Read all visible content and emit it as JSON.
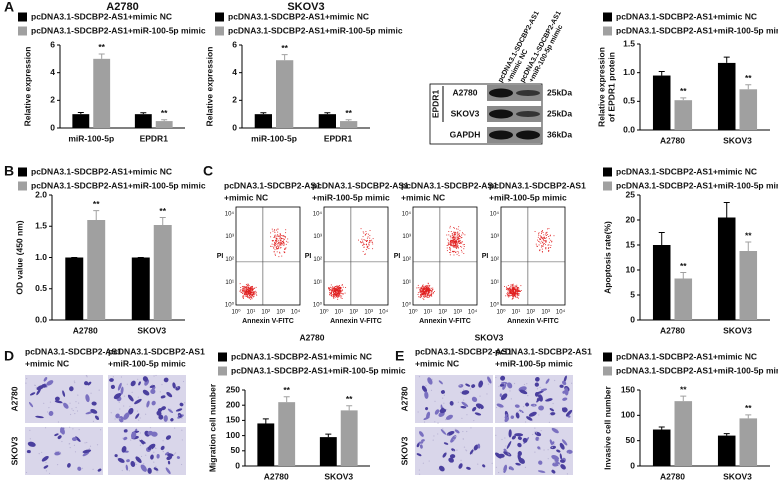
{
  "panel_labels": [
    "A",
    "B",
    "C",
    "D",
    "E"
  ],
  "chart_data": [
    {
      "type": "bar",
      "title": "A2780",
      "y_label": "Relative expression",
      "categories": [
        "miR-100-5p",
        "EPDR1"
      ],
      "series": [
        {
          "name": "pcDNA3.1-SDCBP2-AS1+mimic NC",
          "color": "#000000",
          "values": [
            1,
            1
          ],
          "errors": [
            0.12,
            0.1
          ]
        },
        {
          "name": "pcDNA3.1-SDCBP2-AS1+miR-100-5p mimic",
          "color": "#a0a0a0",
          "values": [
            5.0,
            0.5
          ],
          "errors": [
            0.35,
            0.1
          ]
        }
      ],
      "significance": [
        "**",
        "**"
      ],
      "ylim": [
        0,
        6
      ],
      "yticks": [
        0,
        2,
        4,
        6
      ]
    },
    {
      "type": "bar",
      "title": "SKOV3",
      "y_label": "Relative expression",
      "categories": [
        "miR-100-5p",
        "EPDR1"
      ],
      "series": [
        {
          "name": "pcDNA3.1-SDCBP2-AS1+mimic NC",
          "color": "#000000",
          "values": [
            1,
            1
          ],
          "errors": [
            0.1,
            0.1
          ]
        },
        {
          "name": "pcDNA3.1-SDCBP2-AS1+miR-100-5p mimic",
          "color": "#a0a0a0",
          "values": [
            4.9,
            0.5
          ],
          "errors": [
            0.4,
            0.1
          ]
        }
      ],
      "significance": [
        "**",
        "**"
      ],
      "ylim": [
        0,
        6
      ],
      "yticks": [
        0,
        2,
        4,
        6
      ]
    },
    {
      "type": "bar",
      "y_label": [
        "Relative expression",
        "of EPDR1 protein"
      ],
      "categories": [
        "A2780",
        "SKOV3"
      ],
      "series": [
        {
          "name": "pcDNA3.1-SDCBP2-AS1+mimic NC",
          "color": "#000000",
          "values": [
            0.95,
            1.17
          ],
          "errors": [
            0.07,
            0.1
          ]
        },
        {
          "name": "pcDNA3.1-SDCBP2-AS1+miR-100-5p mimic",
          "color": "#a0a0a0",
          "values": [
            0.52,
            0.71
          ],
          "errors": [
            0.04,
            0.08
          ]
        }
      ],
      "significance": [
        "**",
        "**"
      ],
      "ylim": [
        0,
        1.5
      ],
      "yticks": [
        {
          "value": 0,
          "label": "0.0"
        },
        {
          "value": 0.5,
          "label": "0.5"
        },
        {
          "value": 1,
          "label": "1.0"
        },
        {
          "value": 1.5,
          "label": "1.5"
        }
      ]
    },
    {
      "type": "bar",
      "y_label": "OD value (450 nm)",
      "categories": [
        "A2780",
        "SKOV3"
      ],
      "series": [
        {
          "name": "pcDNA3.1-SDCBP2-AS1+mimic NC",
          "color": "#000000",
          "values": [
            1.0,
            1.0
          ],
          "errors": [
            0,
            0
          ]
        },
        {
          "name": "pcDNA3.1-SDCBP2-AS1+miR-100-5p mimic",
          "color": "#a0a0a0",
          "values": [
            1.6,
            1.52
          ],
          "errors": [
            0.15,
            0.12
          ]
        }
      ],
      "significance": [
        "**",
        "**"
      ],
      "ylim": [
        0,
        2
      ],
      "yticks": [
        {
          "value": 0,
          "label": "0.0"
        },
        {
          "value": 0.5,
          "label": "0.5"
        },
        {
          "value": 1,
          "label": "1.0"
        },
        {
          "value": 1.5,
          "label": "1.5"
        },
        {
          "value": 2,
          "label": "2.0"
        }
      ]
    },
    {
      "type": "bar",
      "y_label": "Apoptosis rate(%)",
      "categories": [
        "A2780",
        "SKOV3"
      ],
      "series": [
        {
          "name": "pcDNA3.1-SDCBP2-AS1+mimic NC",
          "color": "#000000",
          "values": [
            15,
            20.5
          ],
          "errors": [
            2.5,
            3
          ]
        },
        {
          "name": "pcDNA3.1-SDCBP2-AS1+miR-100-5p mimic",
          "color": "#a0a0a0",
          "values": [
            8.3,
            13.8
          ],
          "errors": [
            1.2,
            1.8
          ]
        }
      ],
      "significance": [
        "**",
        "**"
      ],
      "ylim": [
        0,
        25
      ],
      "yticks": [
        0,
        5,
        10,
        15,
        20,
        25
      ]
    },
    {
      "type": "bar",
      "y_label": "Migration cell number",
      "categories": [
        "A2780",
        "SKOV3"
      ],
      "series": [
        {
          "name": "pcDNA3.1-SDCBP2-AS1+mimic NC",
          "color": "#000000",
          "values": [
            140,
            95
          ],
          "errors": [
            15,
            10
          ]
        },
        {
          "name": "pcDNA3.1-SDCBP2-AS1+miR-100-5p mimic",
          "color": "#a0a0a0",
          "values": [
            210,
            183
          ],
          "errors": [
            18,
            15
          ]
        }
      ],
      "significance": [
        "**",
        "**"
      ],
      "ylim": [
        0,
        250
      ],
      "yticks": [
        0,
        50,
        100,
        150,
        200,
        250
      ]
    },
    {
      "type": "bar",
      "y_label": "Invasive cell number",
      "categories": [
        "A2780",
        "SKOV3"
      ],
      "series": [
        {
          "name": "pcDNA3.1-SDCBP2-AS1+mimic NC",
          "color": "#000000",
          "values": [
            72,
            60
          ],
          "errors": [
            5,
            4
          ]
        },
        {
          "name": "pcDNA3.1-SDCBP2-AS1+miR-100-5p mimic",
          "color": "#a0a0a0",
          "values": [
            128,
            94
          ],
          "errors": [
            10,
            7
          ]
        }
      ],
      "significance": [
        "**",
        "**"
      ],
      "ylim": [
        0,
        150
      ],
      "yticks": [
        0,
        50,
        100,
        150
      ]
    }
  ],
  "blot": {
    "columns": [
      [
        "pcDNA3.1-SDCBP2-AS1",
        "+mimic NC"
      ],
      [
        "pcDNA3.1-SDCBP2-AS1",
        "+miR-100-5p mimic"
      ]
    ],
    "group": "EPDR1",
    "rows": [
      "A2780",
      "SKOV3",
      "GAPDH"
    ],
    "sizes": [
      "25kDa",
      "25kDa",
      "36kDa"
    ]
  },
  "flow": {
    "titles": [
      [
        "pcDNA3.1-SDCBP2-AS1",
        "+mimic NC"
      ],
      [
        "pcDNA3.1-SDCBP2-AS1",
        "+miR-100-5p mimic"
      ],
      [
        "pcDNA3.1-SDCBP2-AS1",
        "+mimic NC"
      ],
      [
        "pcDNA3.1-SDCBP2-AS1",
        "+miR-100-5p mimic"
      ]
    ],
    "y_label": "PI",
    "x_label": "Annexin V-FITC",
    "ticks": [
      "10⁰",
      "10¹",
      "10²",
      "10³",
      "10⁴"
    ],
    "groups": [
      "A2780",
      "SKOV3"
    ]
  },
  "images": [
    {
      "columns": [
        [
          "pcDNA3.1-SDCBP2-AS1",
          "+mimic NC"
        ],
        [
          "pcDNA3.1-SDCBP2-AS1",
          "+miR-100-5p mimic"
        ]
      ],
      "rows": [
        "A2780",
        "SKOV3"
      ]
    },
    {
      "columns": [
        [
          "pcDNA3.1-SDCBP2-AS1",
          "+mimic NC"
        ],
        [
          "pcDNA3.1-SDCBP2-AS1",
          "+miR-100-5p mimic"
        ]
      ],
      "rows": [
        "A2780",
        "SKOV3"
      ]
    }
  ]
}
